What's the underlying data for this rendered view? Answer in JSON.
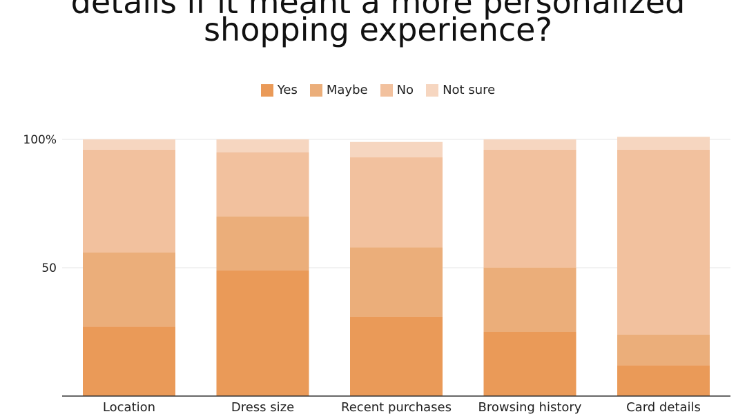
{
  "chart_data": {
    "type": "bar",
    "stacked": true,
    "title_lines": [
      "details if it meant a more personalized",
      "shopping experience?"
    ],
    "categories": [
      "Location",
      "Dress size",
      "Recent purchases",
      "Browsing history",
      "Card details"
    ],
    "series": [
      {
        "name": "Yes",
        "color": "#ea9a58",
        "values": [
          27,
          49,
          31,
          25,
          12
        ]
      },
      {
        "name": "Maybe",
        "color": "#ebae7a",
        "values": [
          29,
          21,
          27,
          25,
          12
        ]
      },
      {
        "name": "No",
        "color": "#f2c19e",
        "values": [
          40,
          25,
          35,
          46,
          72
        ]
      },
      {
        "name": "Not sure",
        "color": "#f6d6c0",
        "values": [
          4,
          5,
          6,
          4,
          5
        ]
      }
    ],
    "y_ticks": [
      "100%",
      "50"
    ],
    "ylim": [
      0,
      100
    ],
    "grid": true,
    "legend_position": "top-center"
  }
}
